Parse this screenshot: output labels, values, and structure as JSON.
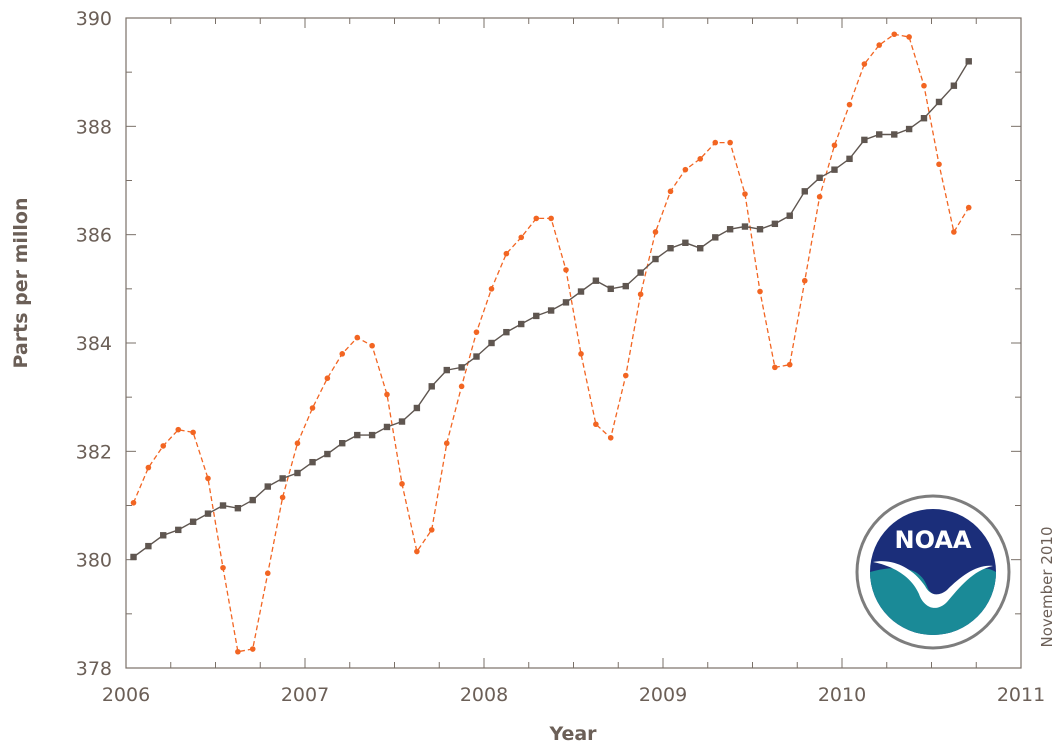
{
  "chart_data": {
    "type": "line",
    "title": "",
    "xlabel": "Year",
    "ylabel": "Parts per millon",
    "xlim": [
      2006,
      2011
    ],
    "ylim": [
      378,
      390
    ],
    "xticks": [
      "2006",
      "2007",
      "2008",
      "2009",
      "2010",
      "2011"
    ],
    "yticks": [
      "378",
      "380",
      "382",
      "384",
      "386",
      "388",
      "390"
    ],
    "grid": false,
    "legend": "none",
    "x": [
      2006.042,
      2006.125,
      2006.208,
      2006.292,
      2006.375,
      2006.458,
      2006.542,
      2006.625,
      2006.708,
      2006.792,
      2006.875,
      2006.958,
      2007.042,
      2007.125,
      2007.208,
      2007.292,
      2007.375,
      2007.458,
      2007.542,
      2007.625,
      2007.708,
      2007.792,
      2007.875,
      2007.958,
      2008.042,
      2008.125,
      2008.208,
      2008.292,
      2008.375,
      2008.458,
      2008.542,
      2008.625,
      2008.708,
      2008.792,
      2008.875,
      2008.958,
      2009.042,
      2009.125,
      2009.208,
      2009.292,
      2009.375,
      2009.458,
      2009.542,
      2009.625,
      2009.708,
      2009.792,
      2009.875,
      2009.958,
      2010.042,
      2010.125,
      2010.208,
      2010.292,
      2010.375,
      2010.458,
      2010.542,
      2010.625,
      2010.708
    ],
    "series": [
      {
        "color": "#f26522",
        "style": "dashed",
        "marker": "circle",
        "values": [
          381.05,
          381.7,
          382.1,
          382.4,
          382.35,
          381.5,
          379.85,
          378.3,
          378.35,
          379.75,
          381.15,
          382.15,
          382.8,
          383.35,
          383.8,
          384.1,
          383.95,
          383.05,
          381.4,
          380.15,
          380.55,
          382.15,
          383.2,
          384.2,
          385.0,
          385.65,
          385.95,
          386.3,
          386.3,
          385.35,
          383.8,
          382.5,
          382.25,
          383.4,
          384.9,
          386.05,
          386.8,
          387.2,
          387.4,
          387.7,
          387.7,
          386.75,
          384.95,
          383.55,
          383.6,
          385.15,
          386.7,
          387.65,
          388.4,
          389.15,
          389.5,
          389.7,
          389.65,
          388.75,
          387.3,
          386.05,
          386.5
        ]
      },
      {
        "color": "#5f5650",
        "style": "solid",
        "marker": "square",
        "values": [
          380.05,
          380.25,
          380.45,
          380.55,
          380.7,
          380.85,
          381.0,
          380.95,
          381.1,
          381.35,
          381.5,
          381.6,
          381.8,
          381.95,
          382.15,
          382.3,
          382.3,
          382.45,
          382.55,
          382.8,
          383.2,
          383.5,
          383.55,
          383.75,
          384.0,
          384.2,
          384.35,
          384.5,
          384.6,
          384.75,
          384.95,
          385.15,
          385.0,
          385.05,
          385.3,
          385.55,
          385.75,
          385.85,
          385.75,
          385.95,
          386.1,
          386.15,
          386.1,
          386.2,
          386.35,
          386.8,
          387.05,
          387.2,
          387.4,
          387.75,
          387.85,
          387.85,
          387.95,
          388.15,
          388.45,
          388.75,
          389.2
        ]
      }
    ],
    "watermark_text": "November 2010"
  },
  "logo": {
    "name": "noaa-logo",
    "text": "NOAA"
  }
}
